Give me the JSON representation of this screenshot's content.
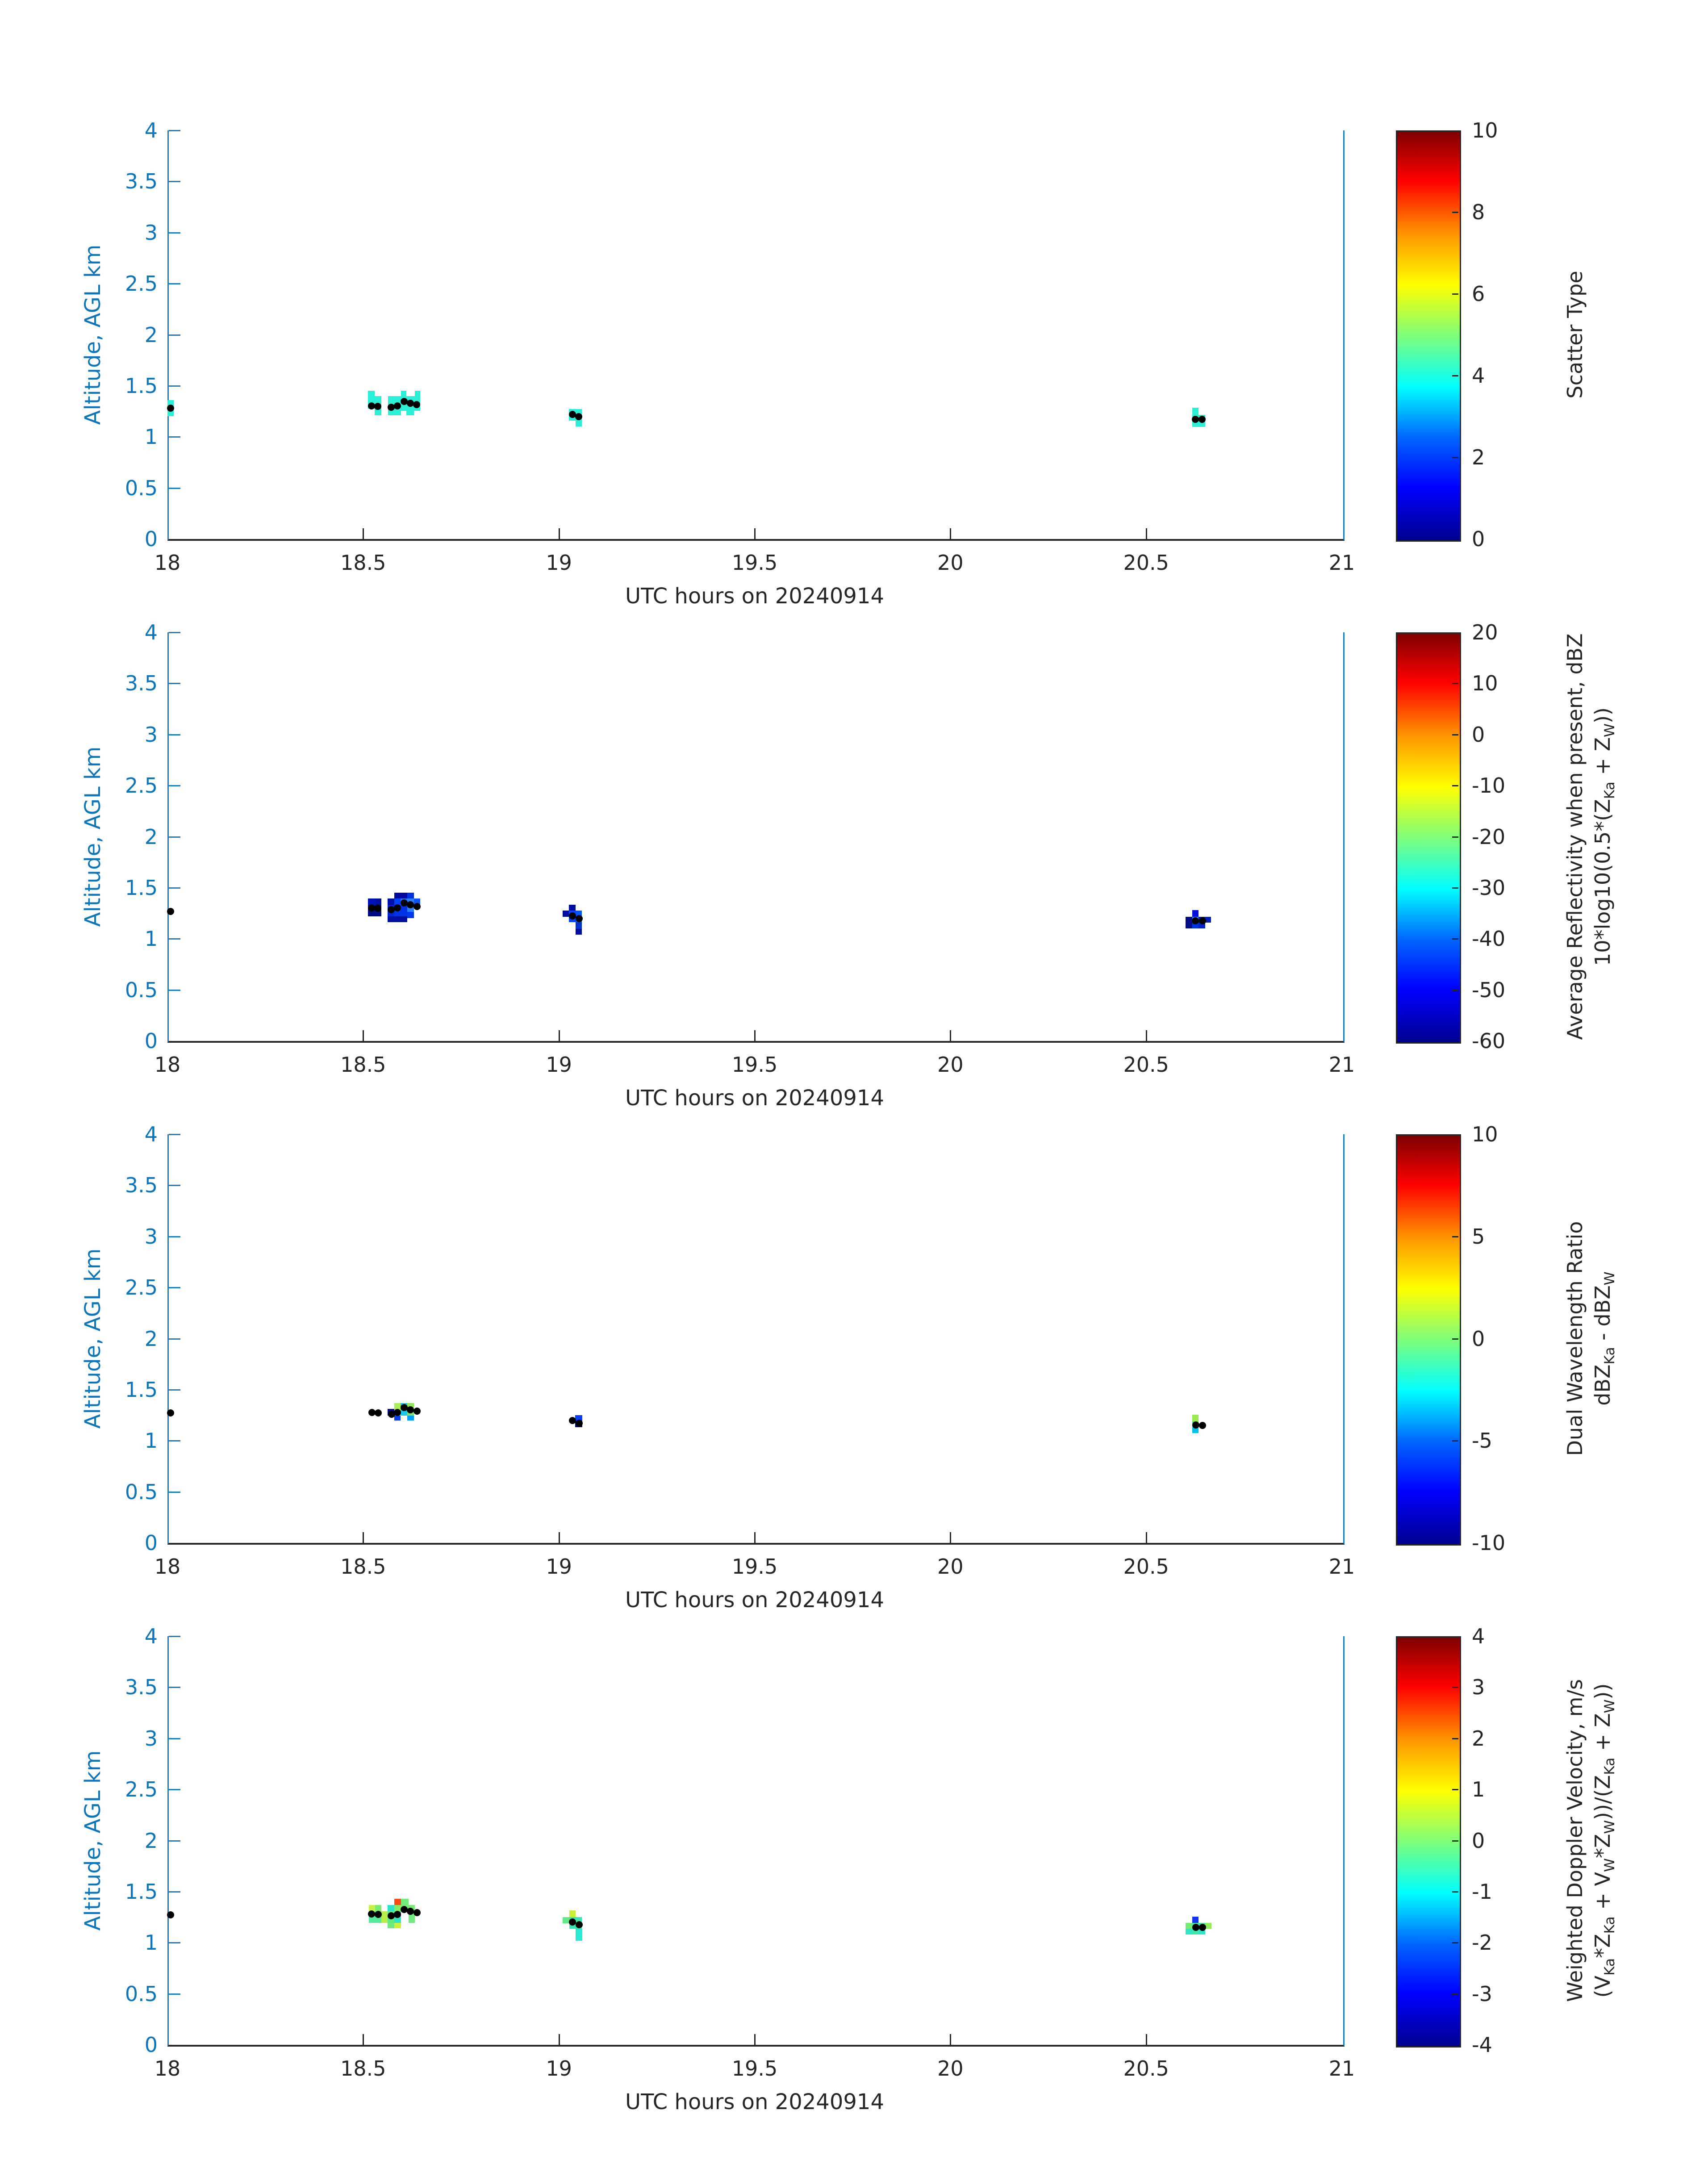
{
  "figure": {
    "xlabel": "UTC hours on 20240914",
    "ylabel": "Altitude, AGL km",
    "x_tick_labels": [
      "18",
      "18.5",
      "19",
      "19.5",
      "20",
      "20.5",
      "21"
    ],
    "y_tick_labels": [
      "0",
      "0.5",
      "1",
      "1.5",
      "2",
      "2.5",
      "3",
      "3.5",
      "4"
    ],
    "colors": {
      "y_axis_blue": "#0b76bc",
      "spine_blue": "#1a7fc4",
      "x_axis_dark": "#262626",
      "dot_black": "#000000"
    }
  },
  "chart_data": [
    {
      "type": "heatmap",
      "panel": "scatter-type",
      "xlabel": "UTC hours on 20240914",
      "ylabel": "Altitude, AGL km",
      "xlim": [
        18,
        21
      ],
      "ylim": [
        0,
        4
      ],
      "colorbar": {
        "min": 0,
        "max": 10,
        "ticks": [
          "10",
          "8",
          "6",
          "4",
          "2",
          "0"
        ],
        "tick_values": [
          10,
          8,
          6,
          4,
          2,
          0
        ],
        "label_lines": [
          [
            {
              "t": "Scatter Type"
            }
          ]
        ],
        "colormap": "jet"
      },
      "cell_format": [
        "time_hours_left",
        "altitude_km_top",
        "width_hours",
        "height_km",
        "color",
        "value"
      ],
      "cells": [
        [
          18.0,
          1.36,
          0.016,
          0.16,
          "#2af0d8",
          4
        ],
        [
          18.512,
          1.451,
          0.017,
          0.174,
          "#2af0d8",
          4
        ],
        [
          18.529,
          1.399,
          0.017,
          0.188,
          "#2af0d8",
          4
        ],
        [
          18.563,
          1.399,
          0.083,
          0.144,
          "#2af0d8",
          4
        ],
        [
          18.563,
          1.255,
          0.034,
          0.044,
          "#2af0d8",
          4
        ],
        [
          18.61,
          1.255,
          0.02,
          0.044,
          "#2af0d8",
          4
        ],
        [
          18.597,
          1.451,
          0.013,
          0.052,
          "#2af0d8",
          4
        ],
        [
          18.632,
          1.451,
          0.014,
          0.052,
          "#2af0d8",
          4
        ],
        [
          19.026,
          1.272,
          0.033,
          0.113,
          "#2af0d8",
          4
        ],
        [
          19.043,
          1.159,
          0.016,
          0.057,
          "#2af0d8",
          4
        ],
        [
          20.618,
          1.285,
          0.016,
          0.187,
          "#2af0d8",
          4
        ],
        [
          20.634,
          1.215,
          0.017,
          0.117,
          "#2af0d8",
          4
        ]
      ],
      "dot_format": [
        "time_hours",
        "altitude_km"
      ],
      "dots": [
        [
          18.008,
          1.28
        ],
        [
          18.521,
          1.303
        ],
        [
          18.537,
          1.299
        ],
        [
          18.571,
          1.29
        ],
        [
          18.587,
          1.303
        ],
        [
          18.604,
          1.347
        ],
        [
          18.62,
          1.329
        ],
        [
          18.637,
          1.316
        ],
        [
          19.035,
          1.22
        ],
        [
          19.051,
          1.198
        ],
        [
          20.626,
          1.172
        ],
        [
          20.643,
          1.172
        ]
      ]
    },
    {
      "type": "heatmap",
      "panel": "average-reflectivity",
      "xlabel": "UTC hours on 20240914",
      "ylabel": "Altitude, AGL km",
      "xlim": [
        18,
        21
      ],
      "ylim": [
        0,
        4
      ],
      "colorbar": {
        "min": -60,
        "max": 20,
        "ticks": [
          "20",
          "10",
          "0",
          "-10",
          "-20",
          "-30",
          "-40",
          "-50",
          "-60"
        ],
        "tick_values": [
          20,
          10,
          0,
          -10,
          -20,
          -30,
          -40,
          -50,
          -60
        ],
        "label_lines": [
          [
            {
              "t": "Average Reflectivity when present, dBZ"
            }
          ],
          [
            {
              "t": "10*log10(0.5*(Z"
            },
            {
              "s": "Ka"
            },
            {
              "t": " + Z"
            },
            {
              "s": "W"
            },
            {
              "t": "))"
            }
          ]
        ],
        "colormap": "jet"
      },
      "cell_format": [
        "time_hours_left",
        "altitude_km_top",
        "width_hours",
        "height_km",
        "color",
        "value_dBZ"
      ],
      "cells": [
        [
          18.512,
          1.394,
          0.019,
          0.065,
          "#0013b8",
          -55
        ],
        [
          18.531,
          1.394,
          0.015,
          0.065,
          "#000f9e",
          -56
        ],
        [
          18.512,
          1.329,
          0.034,
          0.11,
          "#000d86",
          -57
        ],
        [
          18.562,
          1.394,
          0.017,
          0.065,
          "#0010a8",
          -56
        ],
        [
          18.562,
          1.329,
          0.017,
          0.11,
          "#0026d8",
          -52
        ],
        [
          18.579,
          1.451,
          0.034,
          0.057,
          "#0008a0",
          -57
        ],
        [
          18.579,
          1.394,
          0.017,
          0.065,
          "#0041ff",
          -48
        ],
        [
          18.596,
          1.394,
          0.017,
          0.065,
          "#1e6eff",
          -45
        ],
        [
          18.579,
          1.329,
          0.034,
          0.11,
          "#0032e8",
          -51
        ],
        [
          18.562,
          1.219,
          0.051,
          0.058,
          "#000fa0",
          -56
        ],
        [
          18.613,
          1.451,
          0.017,
          0.057,
          "#0030e0",
          -51
        ],
        [
          18.613,
          1.394,
          0.017,
          0.13,
          "#2a7fff",
          -44
        ],
        [
          18.63,
          1.394,
          0.016,
          0.065,
          "#0c52ff",
          -47
        ],
        [
          18.613,
          1.264,
          0.017,
          0.062,
          "#0038f0",
          -50
        ],
        [
          19.026,
          1.333,
          0.017,
          0.057,
          "#000d9e",
          -56
        ],
        [
          19.01,
          1.276,
          0.016,
          0.061,
          "#000d9e",
          -56
        ],
        [
          19.026,
          1.276,
          0.017,
          0.113,
          "#0342ff",
          -48
        ],
        [
          19.043,
          1.276,
          0.016,
          0.113,
          "#0055ff",
          -47
        ],
        [
          19.043,
          1.163,
          0.016,
          0.066,
          "#0033cc",
          -51
        ],
        [
          19.043,
          1.097,
          0.016,
          0.056,
          "#000d9e",
          -56
        ],
        [
          20.601,
          1.215,
          0.017,
          0.114,
          "#000d86",
          -57
        ],
        [
          20.618,
          1.281,
          0.016,
          0.066,
          "#0010dd",
          -53
        ],
        [
          20.618,
          1.215,
          0.016,
          0.061,
          "#1d8fff",
          -43
        ],
        [
          20.634,
          1.215,
          0.032,
          0.057,
          "#0021bb",
          -54
        ],
        [
          20.618,
          1.154,
          0.016,
          0.053,
          "#0033e8",
          -51
        ],
        [
          20.634,
          1.158,
          0.017,
          0.057,
          "#0024c8",
          -53
        ]
      ],
      "dot_format": [
        "time_hours",
        "altitude_km"
      ],
      "dots": [
        [
          18.008,
          1.268
        ],
        [
          18.521,
          1.303
        ],
        [
          18.537,
          1.298
        ],
        [
          18.571,
          1.285
        ],
        [
          18.587,
          1.303
        ],
        [
          18.604,
          1.351
        ],
        [
          18.62,
          1.334
        ],
        [
          18.638,
          1.316
        ],
        [
          19.035,
          1.224
        ],
        [
          19.052,
          1.198
        ],
        [
          20.626,
          1.176
        ],
        [
          20.644,
          1.176
        ]
      ]
    },
    {
      "type": "heatmap",
      "panel": "dual-wavelength-ratio",
      "xlabel": "UTC hours on 20240914",
      "ylabel": "Altitude, AGL km",
      "xlim": [
        18,
        21
      ],
      "ylim": [
        0,
        4
      ],
      "colorbar": {
        "min": -10,
        "max": 10,
        "ticks": [
          "10",
          "5",
          "0",
          "-5",
          "-10"
        ],
        "tick_values": [
          10,
          5,
          0,
          -5,
          -10
        ],
        "label_lines": [
          [
            {
              "t": "Dual Wavelength Ratio"
            }
          ],
          [
            {
              "t": "dBZ"
            },
            {
              "s": "Ka"
            },
            {
              "t": " - dBZ"
            },
            {
              "s": "W"
            }
          ]
        ],
        "colormap": "jet"
      },
      "cell_format": [
        "time_hours_left",
        "altitude_km_top",
        "width_hours",
        "height_km",
        "color",
        "value_dB"
      ],
      "cells": [
        [
          18.562,
          1.311,
          0.017,
          0.065,
          "#000d86",
          -9.5
        ],
        [
          18.579,
          1.368,
          0.017,
          0.057,
          "#a8ef5a",
          1.5
        ],
        [
          18.596,
          1.368,
          0.017,
          0.122,
          "#16c9f2",
          -4
        ],
        [
          18.613,
          1.368,
          0.017,
          0.057,
          "#8fe957",
          0.8
        ],
        [
          18.579,
          1.311,
          0.017,
          0.065,
          "#b4ee4e",
          1.8
        ],
        [
          18.613,
          1.311,
          0.017,
          0.065,
          "#7ce568",
          0.5
        ],
        [
          18.579,
          1.246,
          0.017,
          0.048,
          "#0a3cf0",
          -7.5
        ],
        [
          18.613,
          1.246,
          0.017,
          0.048,
          "#00a2ff",
          -5.5
        ],
        [
          19.042,
          1.25,
          0.018,
          0.057,
          "#0540ff",
          -7
        ],
        [
          19.042,
          1.193,
          0.018,
          0.061,
          "#000d86",
          -9.5
        ],
        [
          20.618,
          1.254,
          0.016,
          0.065,
          "#9ceb4d",
          1.2
        ],
        [
          20.618,
          1.189,
          0.016,
          0.057,
          "#3ddb94",
          -1.5
        ],
        [
          20.618,
          1.132,
          0.016,
          0.057,
          "#00c0f0",
          -4.5
        ]
      ],
      "dot_format": [
        "time_hours",
        "altitude_km"
      ],
      "dots": [
        [
          18.008,
          1.27
        ],
        [
          18.522,
          1.277
        ],
        [
          18.538,
          1.272
        ],
        [
          18.573,
          1.259
        ],
        [
          18.587,
          1.277
        ],
        [
          18.604,
          1.325
        ],
        [
          18.62,
          1.303
        ],
        [
          18.638,
          1.29
        ],
        [
          19.035,
          1.198
        ],
        [
          19.052,
          1.172
        ],
        [
          20.627,
          1.154
        ],
        [
          20.644,
          1.15
        ]
      ]
    },
    {
      "type": "heatmap",
      "panel": "weighted-doppler-velocity",
      "xlabel": "UTC hours on 20240914",
      "ylabel": "Altitude, AGL km",
      "xlim": [
        18,
        21
      ],
      "ylim": [
        0,
        4
      ],
      "colorbar": {
        "min": -4,
        "max": 4,
        "ticks": [
          "4",
          "3",
          "2",
          "1",
          "0",
          "-1",
          "-2",
          "-3",
          "-4"
        ],
        "tick_values": [
          4,
          3,
          2,
          1,
          0,
          -1,
          -2,
          -3,
          -4
        ],
        "label_lines": [
          [
            {
              "t": "Weighted Doppler Velocity, m/s"
            }
          ],
          [
            {
              "t": "(V"
            },
            {
              "s": "Ka"
            },
            {
              "t": "*Z"
            },
            {
              "s": "Ka"
            },
            {
              "t": " + V"
            },
            {
              "s": "W"
            },
            {
              "t": "*Z"
            },
            {
              "s": "W"
            },
            {
              "t": "))/(Z"
            },
            {
              "s": "Ka"
            },
            {
              "t": " + Z"
            },
            {
              "s": "W"
            },
            {
              "t": "))"
            }
          ]
        ],
        "colormap": "jet"
      },
      "cell_format": [
        "time_hours_left",
        "altitude_km_top",
        "width_hours",
        "height_km",
        "color",
        "value_mps"
      ],
      "cells": [
        [
          18.579,
          1.43,
          0.018,
          0.062,
          "#fb4b13",
          2.6
        ],
        [
          18.597,
          1.43,
          0.019,
          0.062,
          "#72ed7c",
          -0.25
        ],
        [
          18.514,
          1.368,
          0.016,
          0.062,
          "#c8f046",
          0.5
        ],
        [
          18.53,
          1.368,
          0.016,
          0.062,
          "#7aec6e",
          -0.25
        ],
        [
          18.562,
          1.368,
          0.017,
          0.062,
          "#2ee4c8",
          -0.9
        ],
        [
          18.579,
          1.368,
          0.018,
          0.062,
          "#84ec62",
          -0.2
        ],
        [
          18.597,
          1.368,
          0.019,
          0.062,
          "#77ec74",
          -0.25
        ],
        [
          18.616,
          1.368,
          0.016,
          0.062,
          "#77ec74",
          -0.25
        ],
        [
          18.514,
          1.306,
          0.032,
          0.114,
          "#52ec9a",
          -0.5
        ],
        [
          18.546,
          1.306,
          0.016,
          0.114,
          "#b6ef4a",
          0.4
        ],
        [
          18.562,
          1.306,
          0.017,
          0.114,
          "#62e986",
          -0.3
        ],
        [
          18.579,
          1.306,
          0.018,
          0.114,
          "#2ee4c8",
          -0.9
        ],
        [
          18.616,
          1.306,
          0.016,
          0.114,
          "#6fea7e",
          -0.3
        ],
        [
          18.562,
          1.192,
          0.017,
          0.053,
          "#70ea78",
          -0.3
        ],
        [
          18.579,
          1.192,
          0.018,
          0.053,
          "#ccf23c",
          0.6
        ],
        [
          19.027,
          1.316,
          0.016,
          0.066,
          "#c9ef35",
          0.6
        ],
        [
          19.01,
          1.25,
          0.017,
          0.061,
          "#63e987",
          -0.3
        ],
        [
          19.027,
          1.25,
          0.032,
          0.114,
          "#35e7ae",
          -0.7
        ],
        [
          19.043,
          1.136,
          0.017,
          0.117,
          "#25ecd2",
          -1.0
        ],
        [
          20.618,
          1.254,
          0.016,
          0.061,
          "#1436f0",
          -2.9
        ],
        [
          20.601,
          1.193,
          0.017,
          0.057,
          "#77ec74",
          -0.25
        ],
        [
          20.618,
          1.193,
          0.016,
          0.057,
          "#48e89e",
          -0.6
        ],
        [
          20.634,
          1.193,
          0.017,
          0.057,
          "#40e8a6",
          -0.6
        ],
        [
          20.651,
          1.193,
          0.016,
          0.057,
          "#8fee55",
          0.2
        ],
        [
          20.601,
          1.136,
          0.017,
          0.057,
          "#2ee6c4",
          -0.9
        ],
        [
          20.618,
          1.136,
          0.016,
          0.057,
          "#3fe7a8",
          -0.6
        ],
        [
          20.634,
          1.136,
          0.017,
          0.057,
          "#30e6c2",
          -0.9
        ]
      ],
      "dot_format": [
        "time_hours",
        "altitude_km"
      ],
      "dots": [
        [
          18.008,
          1.27
        ],
        [
          18.521,
          1.281
        ],
        [
          18.538,
          1.277
        ],
        [
          18.571,
          1.263
        ],
        [
          18.587,
          1.277
        ],
        [
          18.604,
          1.325
        ],
        [
          18.62,
          1.307
        ],
        [
          18.638,
          1.294
        ],
        [
          19.035,
          1.202
        ],
        [
          19.052,
          1.176
        ],
        [
          20.627,
          1.15
        ],
        [
          20.644,
          1.15
        ]
      ]
    }
  ]
}
